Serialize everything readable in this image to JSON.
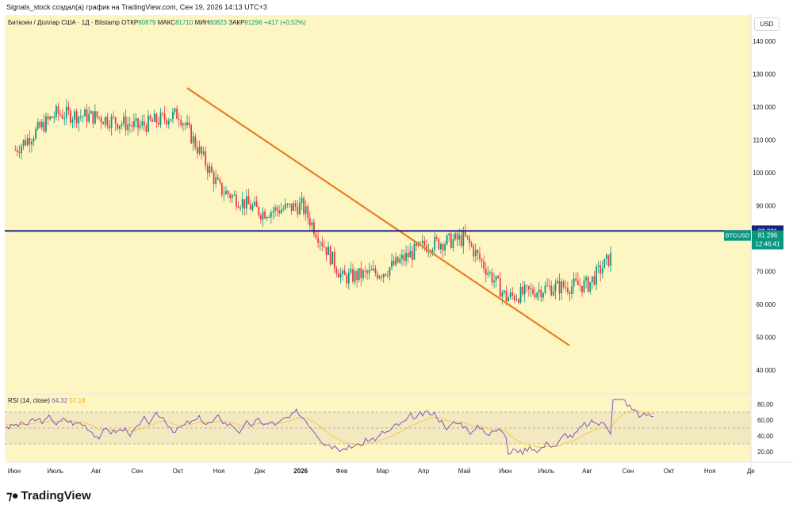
{
  "header": {
    "attribution": "Signals_stock создал(а) график на TradingView.com, Сен 19, 2026 14:13 UTC+3"
  },
  "legend": {
    "symbol": "Биткоин / Доллар США · 1Д · Bitstamp",
    "open_label": "ОТКР",
    "open_value": "80879",
    "high_label": "МАКС",
    "high_value": "81710",
    "low_label": "МИН",
    "low_value": "80823",
    "close_label": "ЗАКР",
    "close_value": "81296",
    "change": "+417 (+0,52%)"
  },
  "currency_button": "USD",
  "price_axis": {
    "ticks": [
      "140 000",
      "130 000",
      "120 000",
      "110 000",
      "100 000",
      "90 000",
      "70 000",
      "60 000",
      "50 000",
      "40 000"
    ]
  },
  "hline_tag": "82 321",
  "symbol_tag": "BTCUSD",
  "last_price_tag": "81 296",
  "countdown_tag": "12:46:41",
  "rsi": {
    "label": "RSI (14, close)",
    "value": "64,32",
    "ma_value": "57,18",
    "ticks": [
      "80,00",
      "60,00",
      "40,00",
      "20,00"
    ]
  },
  "time_axis": {
    "labels": [
      "Июн",
      "Июль",
      "Авг",
      "Сен",
      "Окт",
      "Ноя",
      "Дек",
      "2026",
      "Фев",
      "Мар",
      "Апр",
      "Май",
      "Июн",
      "Июль",
      "Авг",
      "Сен",
      "Окт",
      "Ноя",
      "Де"
    ]
  },
  "logo": "TradingView",
  "colors": {
    "background": "#fdf6c3",
    "up": "#089981",
    "down": "#f23645",
    "trendline": "#e87e1f",
    "hline": "#1a237e",
    "rsi_line": "#7e57c2",
    "rsi_ma": "#f5c84c",
    "rsi_band": "#f0e6c0"
  },
  "chart_data": {
    "type": "candlestick",
    "ylim": [
      33000,
      148000
    ],
    "horizontal_level": 82321,
    "last_close": 81296,
    "trendline": [
      {
        "date": "Окт",
        "price": 125800
      },
      {
        "date": "Июль",
        "price": 47500
      }
    ],
    "monthly_close_path": [
      {
        "month": "Июн",
        "price": 107000
      },
      {
        "month": "Июль",
        "price": 118000
      },
      {
        "month": "Авг",
        "price": 117000
      },
      {
        "month": "Сен",
        "price": 114000
      },
      {
        "month": "Окт",
        "price": 118000
      },
      {
        "month": "Ноя",
        "price": 95000
      },
      {
        "month": "Дек",
        "price": 88000
      },
      {
        "month": "2026",
        "price": 90000
      },
      {
        "month": "Фев",
        "price": 68000
      },
      {
        "month": "Мар",
        "price": 70000
      },
      {
        "month": "Апр",
        "price": 78000
      },
      {
        "month": "Май",
        "price": 80000
      },
      {
        "month": "Июн",
        "price": 62000
      },
      {
        "month": "Июль",
        "price": 65000
      },
      {
        "month": "Авг",
        "price": 66000
      },
      {
        "month": "Сен",
        "price": 81296
      }
    ],
    "rsi_levels": [
      70,
      50,
      30
    ],
    "rsi_range": [
      10,
      90
    ]
  }
}
